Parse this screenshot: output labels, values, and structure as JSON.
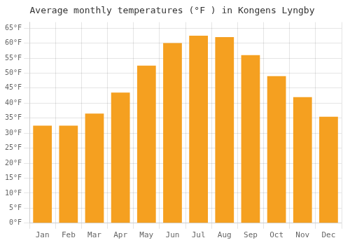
{
  "chart_data": {
    "type": "bar",
    "title": "Average monthly temperatures (°F ) in Kongens Lyngby",
    "categories": [
      "Jan",
      "Feb",
      "Mar",
      "Apr",
      "May",
      "Jun",
      "Jul",
      "Aug",
      "Sep",
      "Oct",
      "Nov",
      "Dec"
    ],
    "values": [
      32.5,
      32.5,
      36.5,
      43.5,
      52.5,
      60.0,
      62.5,
      62.0,
      56.0,
      49.0,
      42.0,
      35.5
    ],
    "color": "#F5A020",
    "ylim": [
      0,
      67
    ],
    "yticks": [
      {
        "value": 0,
        "label": "0°F"
      },
      {
        "value": 5,
        "label": "5°F"
      },
      {
        "value": 10,
        "label": "10°F"
      },
      {
        "value": 15,
        "label": "15°F"
      },
      {
        "value": 20,
        "label": "20°F"
      },
      {
        "value": 25,
        "label": "25°F"
      },
      {
        "value": 30,
        "label": "30°F"
      },
      {
        "value": 35,
        "label": "35°F"
      },
      {
        "value": 40,
        "label": "40°F"
      },
      {
        "value": 45,
        "label": "45°F"
      },
      {
        "value": 50,
        "label": "50°F"
      },
      {
        "value": 55,
        "label": "55°F"
      },
      {
        "value": 60,
        "label": "60°F"
      },
      {
        "value": 65,
        "label": "65°F"
      }
    ],
    "grid": true
  }
}
